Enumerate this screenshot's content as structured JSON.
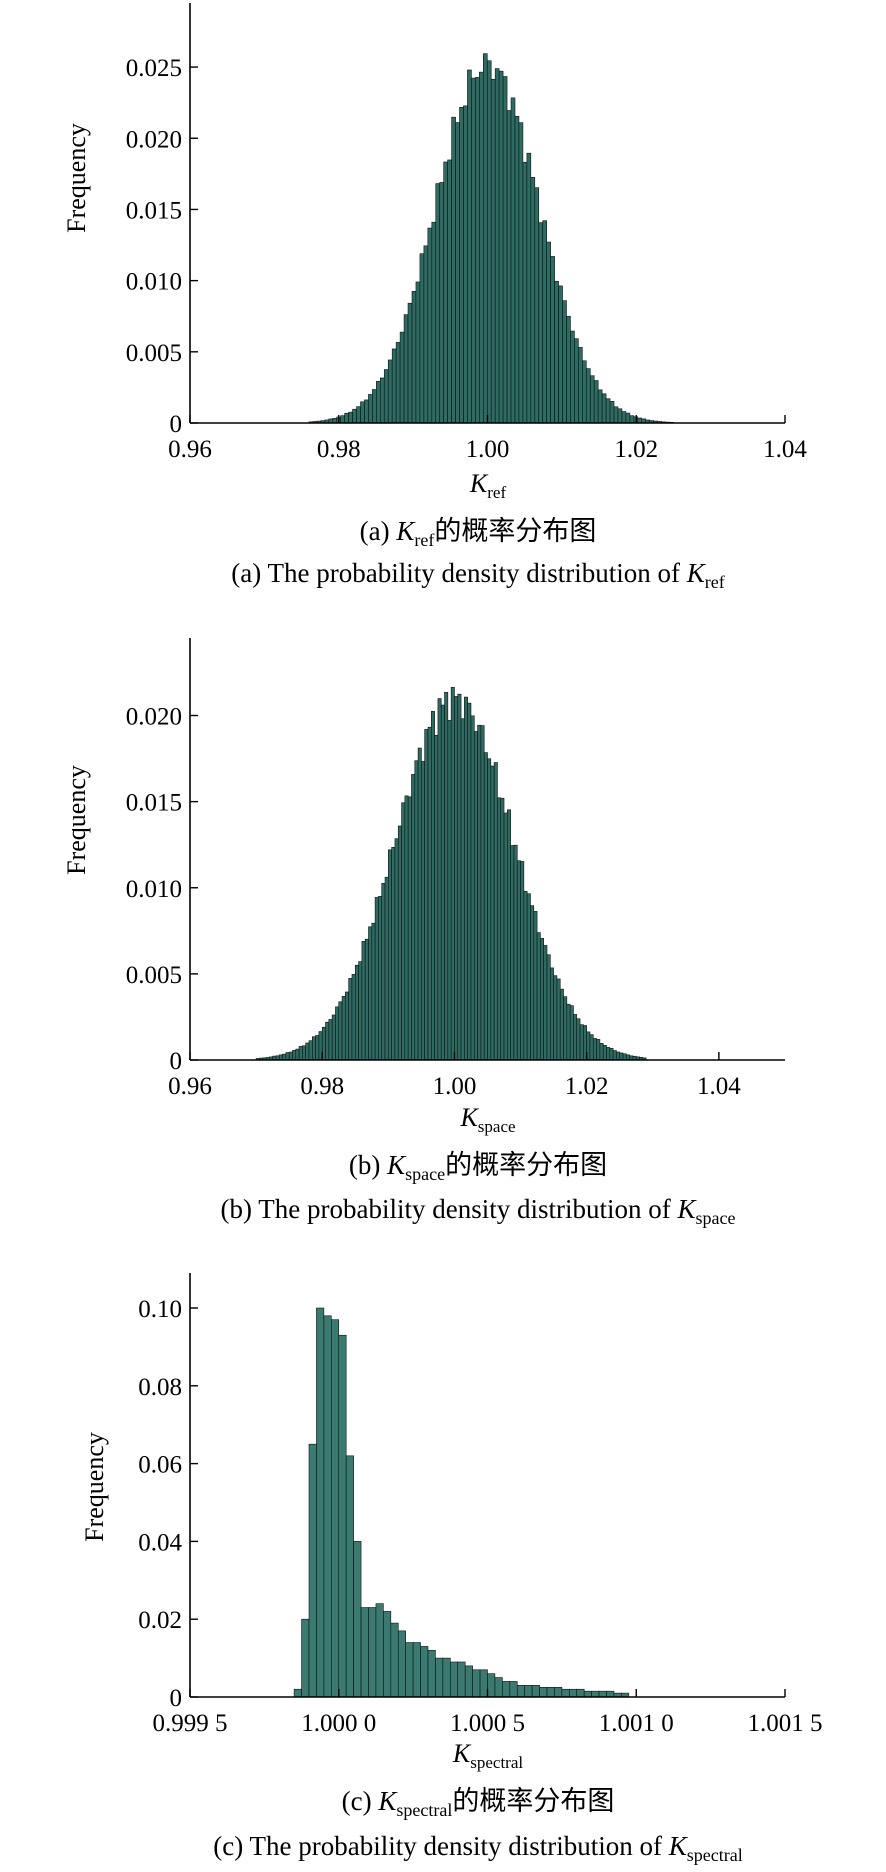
{
  "chart_data": [
    {
      "type": "bar",
      "panel": "a",
      "ylabel": "Frequency",
      "xlabel": {
        "main": "K",
        "sub": "ref"
      },
      "xlim": [
        0.96,
        1.04
      ],
      "ylim": [
        0,
        0.0295
      ],
      "xticks": [
        0.96,
        0.98,
        1.0,
        1.02,
        1.04
      ],
      "xtick_labels": [
        "0.96",
        "0.98",
        "1.00",
        "1.02",
        "1.04"
      ],
      "yticks": [
        0,
        0.005,
        0.01,
        0.015,
        0.02,
        0.025
      ],
      "ytick_labels": [
        "0",
        "0.005",
        "0.010",
        "0.015",
        "0.020",
        "0.025"
      ],
      "bar_color": "#2e6b63",
      "distribution": {
        "kind": "normal",
        "mean": 1.0,
        "sd": 0.007,
        "peak": 0.0252,
        "xmin": 0.976,
        "xmax": 1.025,
        "bins": 92
      },
      "caption_cn": {
        "prefix": "(a) ",
        "main": "K",
        "sub": "ref",
        "suffix": "的概率分布图"
      },
      "caption_en": {
        "prefix": "(a) The probability density distribution of ",
        "main": "K",
        "sub": "ref"
      }
    },
    {
      "type": "bar",
      "panel": "b",
      "ylabel": "Frequency",
      "xlabel": {
        "main": "K",
        "sub": "space"
      },
      "xlim": [
        0.96,
        1.05
      ],
      "ylim": [
        0,
        0.0245
      ],
      "xticks": [
        0.96,
        0.98,
        1.0,
        1.02,
        1.04
      ],
      "xtick_labels": [
        "0.96",
        "0.98",
        "1.00",
        "1.02",
        "1.04"
      ],
      "yticks": [
        0,
        0.005,
        0.01,
        0.015,
        0.02
      ],
      "ytick_labels": [
        "0",
        "0.005",
        "0.010",
        "0.015",
        "0.020"
      ],
      "bar_color": "#2e6b63",
      "distribution": {
        "kind": "normal",
        "mean": 1.0,
        "sd": 0.009,
        "peak": 0.021,
        "xmin": 0.97,
        "xmax": 1.029,
        "bins": 118
      },
      "caption_cn": {
        "prefix": "(b) ",
        "main": "K",
        "sub": "space",
        "suffix": "的概率分布图"
      },
      "caption_en": {
        "prefix": "(b) The probability density distribution of ",
        "main": "K",
        "sub": "space"
      }
    },
    {
      "type": "bar",
      "panel": "c",
      "ylabel": "Frequency",
      "xlabel": {
        "main": "K",
        "sub": "spectral"
      },
      "xlim": [
        0.9995,
        1.0015
      ],
      "ylim": [
        0,
        0.109
      ],
      "xticks": [
        0.9995,
        1.0,
        1.0005,
        1.001,
        1.0015
      ],
      "xtick_labels": [
        "0.999 5",
        "1.000 0",
        "1.000 5",
        "1.001 0",
        "1.001 5"
      ],
      "yticks": [
        0,
        0.02,
        0.04,
        0.06,
        0.08,
        0.1
      ],
      "ytick_labels": [
        "0",
        "0.02",
        "0.04",
        "0.06",
        "0.08",
        "0.10"
      ],
      "bar_color": "#3a7a70",
      "bin_start": 0.99985,
      "bin_width": 2.5e-05,
      "values": [
        0.002,
        0.02,
        0.065,
        0.1,
        0.098,
        0.097,
        0.093,
        0.062,
        0.04,
        0.023,
        0.023,
        0.024,
        0.022,
        0.019,
        0.017,
        0.014,
        0.014,
        0.013,
        0.012,
        0.01,
        0.01,
        0.009,
        0.009,
        0.008,
        0.007,
        0.007,
        0.006,
        0.005,
        0.004,
        0.004,
        0.003,
        0.003,
        0.003,
        0.0025,
        0.0025,
        0.0025,
        0.002,
        0.002,
        0.002,
        0.0015,
        0.0015,
        0.0015,
        0.0015,
        0.001,
        0.001
      ],
      "caption_cn": {
        "prefix": "(c) ",
        "main": "K",
        "sub": "spectral",
        "suffix": "的概率分布图"
      },
      "caption_en": {
        "prefix": "(c) The probability density distribution of ",
        "main": "K",
        "sub": "spectral"
      }
    }
  ]
}
